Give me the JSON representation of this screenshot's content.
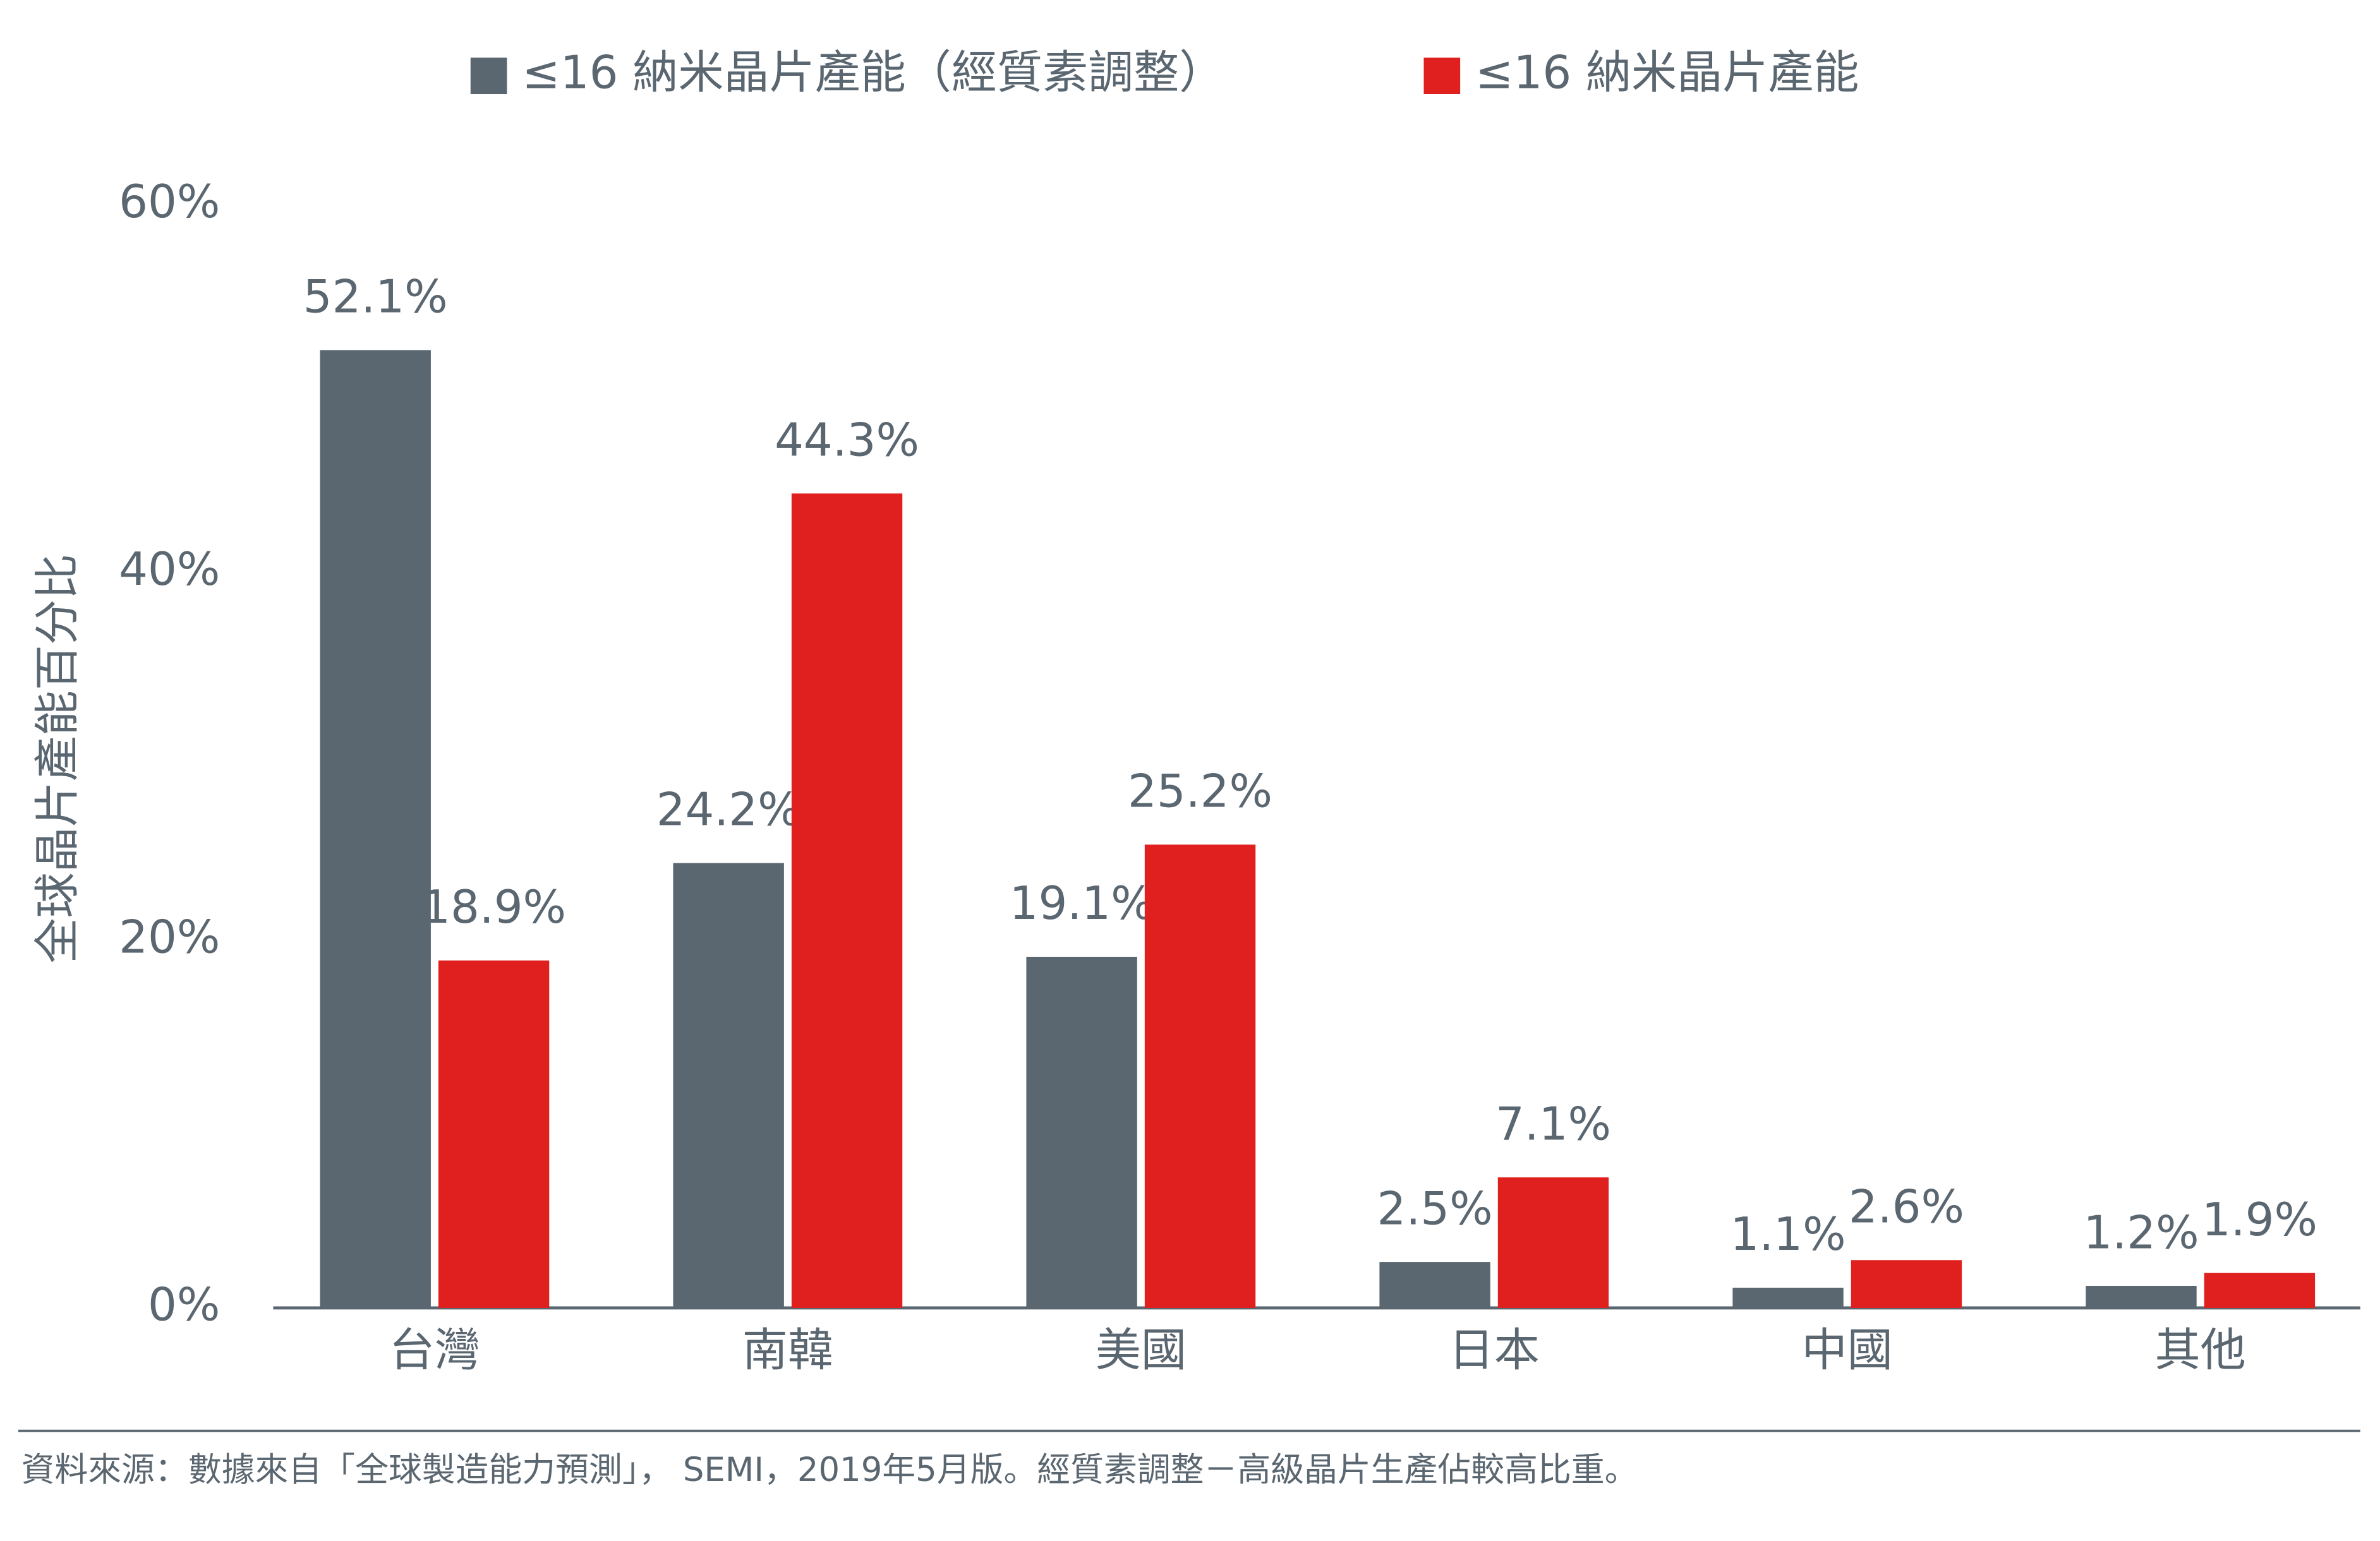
{
  "chart_data": {
    "type": "bar",
    "categories": [
      "台灣",
      "南韓",
      "美國",
      "日本",
      "中國",
      "其他"
    ],
    "series": [
      {
        "name": "≤16 納米晶片產能（經質素調整）",
        "color": "#5a6670",
        "values": [
          52.1,
          24.2,
          19.1,
          2.5,
          1.1,
          1.2
        ],
        "value_labels": [
          "52.1%",
          "24.2%",
          "19.1%",
          "2.5%",
          "1.1%",
          "1.2%"
        ]
      },
      {
        "name": "≤16 納米晶片產能",
        "color": "#e0201e",
        "values": [
          18.9,
          44.3,
          25.2,
          7.1,
          2.6,
          1.9
        ],
        "value_labels": [
          "18.9%",
          "44.3%",
          "25.2%",
          "7.1%",
          "2.6%",
          "1.9%"
        ]
      }
    ],
    "y_label": "全球晶片產能百分比",
    "ylim": [
      0,
      60
    ],
    "yticks": [
      {
        "value": 0,
        "label": "0%"
      },
      {
        "value": 20,
        "label": "20%"
      },
      {
        "value": 40,
        "label": "40%"
      },
      {
        "value": 60,
        "label": "60%"
      }
    ],
    "grid": false,
    "legend": "top",
    "source": "資料來源：數據來自「全球製造能力預測」， SEMI，2019年5月版。經質素調整－高級晶片生產佔較高比重。"
  }
}
